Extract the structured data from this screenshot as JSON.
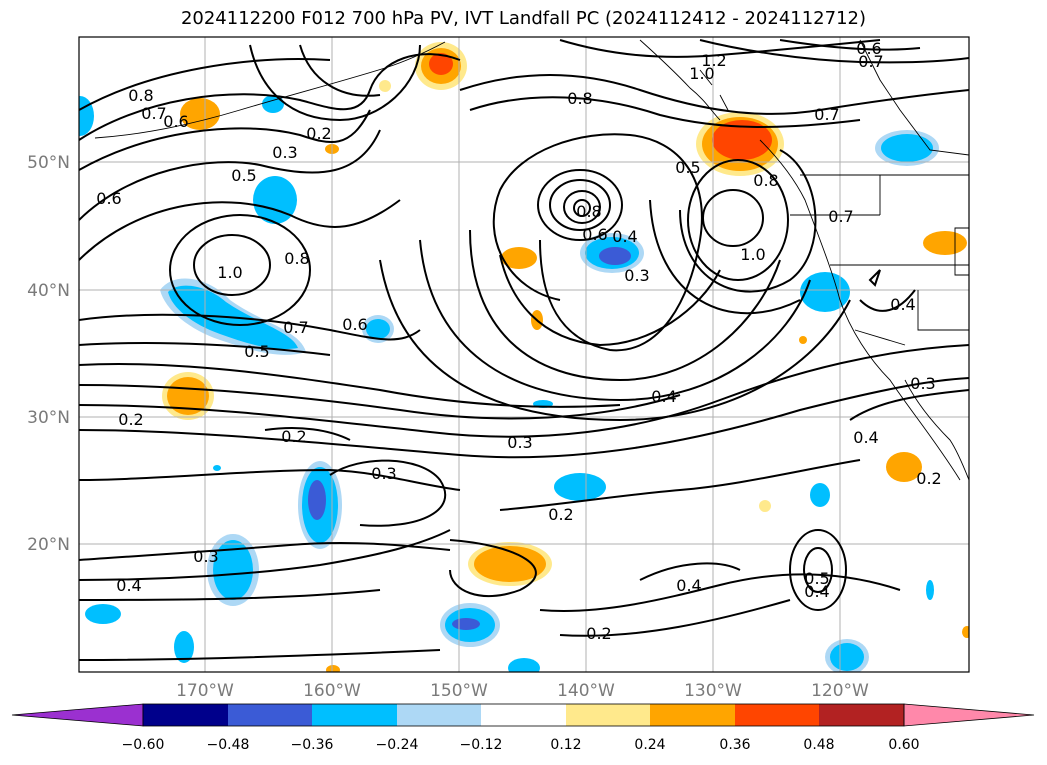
{
  "title": "2024112200 F012 700 hPa PV, IVT Landfall PC (2024112412 - 2024112712)",
  "lat_labels": [
    "50°N",
    "40°N",
    "30°N",
    "20°N"
  ],
  "lon_labels": [
    "170°W",
    "160°W",
    "150°W",
    "140°W",
    "130°W",
    "120°W"
  ],
  "contour_labels": [
    "0.8",
    "0.7",
    "0.6",
    "0.2",
    "0.3",
    "0.5",
    "0.6",
    "0.8",
    "1.0",
    "0.7",
    "0.6",
    "0.5",
    "0.2",
    "0.3",
    "0.2",
    "0.3",
    "0.4",
    "0.8",
    "0.6",
    "0.4",
    "0.3",
    "0.4",
    "0.3",
    "0.2",
    "0.2",
    "1.2",
    "1.0",
    "0.8",
    "0.6",
    "0.7",
    "0.7",
    "0.5",
    "0.8",
    "0.7",
    "1.0",
    "0.4",
    "0.3",
    "0.4",
    "0.4",
    "0.5",
    "0.4",
    "0.2"
  ],
  "colorbar": {
    "ticks": [
      "−0.60",
      "−0.48",
      "−0.36",
      "−0.24",
      "−0.12",
      "0.12",
      "0.24",
      "0.36",
      "0.48",
      "0.60"
    ],
    "colors": [
      "#9b30d0",
      "#00008b",
      "#3b5bd6",
      "#00bfff",
      "#add8f5",
      "#ffffff",
      "#ffe98c",
      "#ffa500",
      "#ff4500",
      "#b22222",
      "#ff88aa"
    ]
  }
}
